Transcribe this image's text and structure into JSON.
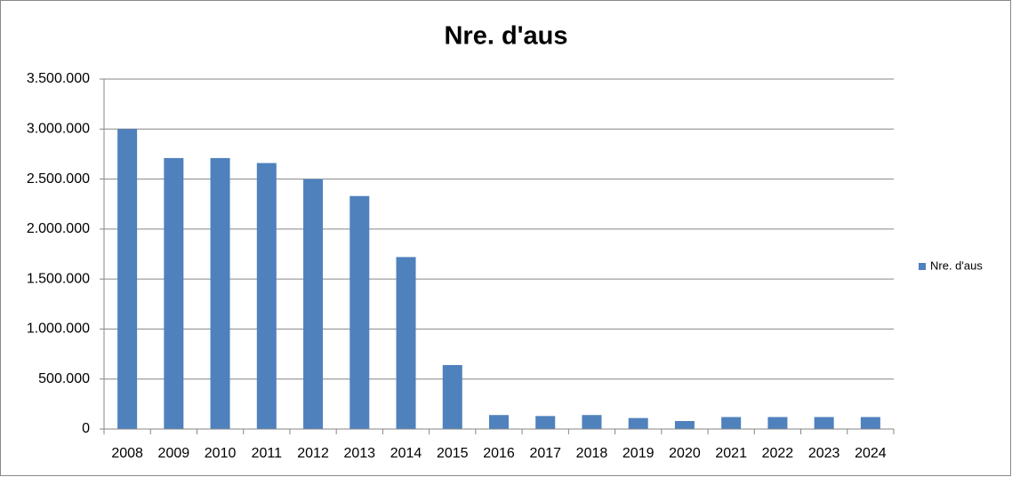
{
  "chart_data": {
    "type": "bar",
    "title": "Nre. d'aus",
    "categories": [
      "2008",
      "2009",
      "2010",
      "2011",
      "2012",
      "2013",
      "2014",
      "2015",
      "2016",
      "2017",
      "2018",
      "2019",
      "2020",
      "2021",
      "2022",
      "2023",
      "2024"
    ],
    "series": [
      {
        "name": "Nre. d'aus",
        "color": "#4f81bd",
        "values": [
          3000000,
          2710000,
          2710000,
          2660000,
          2500000,
          2330000,
          1720000,
          640000,
          140000,
          130000,
          140000,
          110000,
          80000,
          120000,
          120000,
          120000,
          120000
        ]
      }
    ],
    "ylim": [
      0,
      3500000
    ],
    "yticks": [
      0,
      {
        "value": 500000,
        "label": "500.000"
      },
      {
        "value": 1000000,
        "label": "1.000.000"
      },
      {
        "value": 1500000,
        "label": "1.500.000"
      },
      {
        "value": 2000000,
        "label": "2.000.000"
      },
      {
        "value": 2500000,
        "label": "2.500.000"
      },
      {
        "value": 3000000,
        "label": "3.000.000"
      },
      {
        "value": 3500000,
        "label": "3.500.000"
      }
    ],
    "grid": true,
    "legend": "right"
  }
}
